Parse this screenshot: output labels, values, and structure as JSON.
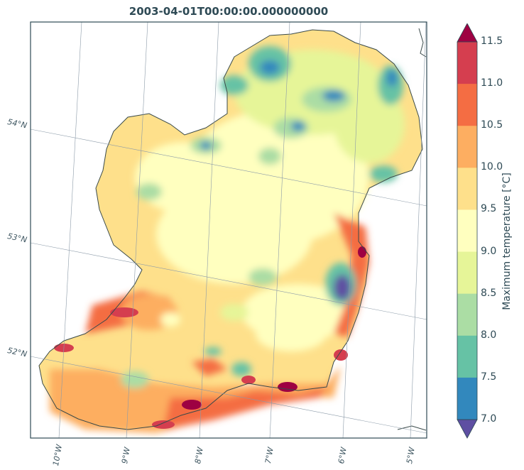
{
  "title": "2003-04-01T00:00:00.000000000",
  "colorbar": {
    "label": "Maximum temperature [°C]",
    "ticks": [
      "11.5",
      "11.0",
      "10.5",
      "10.0",
      "9.5",
      "9.0",
      "8.5",
      "8.0",
      "7.5",
      "7.0"
    ],
    "colors": [
      "#9e0142",
      "#d53e4f",
      "#f46d43",
      "#fdae61",
      "#fee08b",
      "#ffffbf",
      "#e6f598",
      "#abdda4",
      "#66c2a5",
      "#3288bd",
      "#5e4fa2"
    ]
  },
  "latitude_labels": [
    "54°N",
    "53°N",
    "52°N"
  ],
  "longitude_labels": [
    "10°W",
    "9°W",
    "8°W",
    "7°W",
    "6°W",
    "5°W"
  ]
}
